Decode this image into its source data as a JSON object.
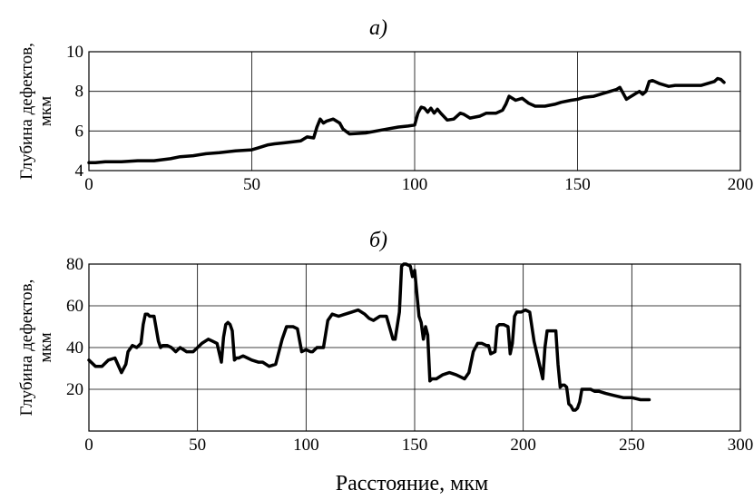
{
  "chart_data": [
    {
      "type": "line",
      "title": "а)",
      "xlabel": "",
      "ylabel": [
        "Глубина дефектов,",
        "мкм"
      ],
      "xlim": [
        0,
        200
      ],
      "ylim": [
        4,
        10
      ],
      "xticks": [
        0,
        50,
        100,
        150,
        200
      ],
      "yticks": [
        4,
        6,
        8,
        10
      ],
      "xtick_labels": [
        "0",
        "50",
        "100",
        "150",
        "200"
      ],
      "ytick_labels": [
        "4",
        "6",
        "8",
        "10"
      ],
      "grid": true,
      "series": [
        {
          "x": [
            0,
            2,
            5,
            10,
            15,
            20,
            25,
            28,
            32,
            36,
            40,
            45,
            50,
            52,
            55,
            57,
            60,
            65,
            67,
            69,
            70,
            71,
            72,
            73,
            75,
            77,
            78,
            80,
            85,
            90,
            95,
            98,
            100,
            101,
            102,
            103,
            104,
            105,
            106,
            107,
            108,
            110,
            112,
            114,
            115,
            117,
            120,
            122,
            125,
            127,
            128,
            129,
            131,
            133,
            135,
            137,
            140,
            143,
            145,
            148,
            150,
            152,
            155,
            158,
            160,
            162,
            163,
            164,
            165,
            166,
            167,
            168,
            169,
            170,
            171,
            172,
            173,
            175,
            178,
            180,
            185,
            188,
            190,
            192,
            193,
            194,
            195
          ],
          "y": [
            4.4,
            4.4,
            4.45,
            4.45,
            4.5,
            4.5,
            4.6,
            4.7,
            4.75,
            4.85,
            4.9,
            5.0,
            5.05,
            5.15,
            5.3,
            5.35,
            5.4,
            5.5,
            5.7,
            5.65,
            6.2,
            6.6,
            6.4,
            6.5,
            6.6,
            6.4,
            6.1,
            5.85,
            5.9,
            6.05,
            6.2,
            6.25,
            6.3,
            6.9,
            7.2,
            7.15,
            6.95,
            7.15,
            6.9,
            7.1,
            6.9,
            6.55,
            6.6,
            6.9,
            6.85,
            6.65,
            6.75,
            6.9,
            6.9,
            7.05,
            7.35,
            7.75,
            7.55,
            7.65,
            7.4,
            7.25,
            7.25,
            7.35,
            7.45,
            7.55,
            7.6,
            7.7,
            7.75,
            7.9,
            8.0,
            8.1,
            8.2,
            7.9,
            7.6,
            7.7,
            7.8,
            7.9,
            8.0,
            7.85,
            8.0,
            8.5,
            8.55,
            8.4,
            8.25,
            8.3,
            8.3,
            8.3,
            8.4,
            8.5,
            8.65,
            8.6,
            8.45
          ]
        }
      ]
    },
    {
      "type": "line",
      "title": "б)",
      "xlabel": "Расстояние, мкм",
      "ylabel": [
        "Глубина дефектов,",
        "мкм"
      ],
      "xlim": [
        0,
        300
      ],
      "ylim": [
        0,
        80
      ],
      "xticks": [
        0,
        50,
        100,
        150,
        200,
        250,
        300
      ],
      "yticks": [
        0,
        20,
        40,
        60,
        80
      ],
      "xtick_labels": [
        "0",
        "50",
        "100",
        "150",
        "200",
        "250",
        "300"
      ],
      "ytick_labels": [
        "20",
        "40",
        "60",
        "80"
      ],
      "grid": true,
      "series": [
        {
          "x": [
            0,
            3,
            6,
            9,
            12,
            15,
            17,
            18,
            20,
            22,
            24,
            25,
            26,
            27,
            28,
            30,
            32,
            33,
            34,
            35,
            36,
            38,
            40,
            42,
            45,
            48,
            52,
            55,
            57,
            59,
            61,
            62,
            63,
            64,
            65,
            66,
            67,
            68,
            69,
            71,
            73,
            75,
            78,
            80,
            83,
            86,
            89,
            91,
            93,
            94,
            96,
            98,
            100,
            102,
            103,
            105,
            108,
            110,
            112,
            115,
            118,
            121,
            124,
            127,
            129,
            131,
            134,
            137,
            140,
            141,
            143,
            144,
            145,
            146,
            148,
            149,
            150,
            152,
            153,
            154,
            155,
            156,
            157,
            158,
            160,
            163,
            166,
            169,
            171,
            173,
            175,
            177,
            179,
            181,
            183,
            184,
            185,
            187,
            188,
            189,
            191,
            193,
            194,
            195,
            196,
            197,
            199,
            201,
            203,
            205,
            207,
            209,
            210,
            211,
            212,
            213,
            214,
            215,
            216,
            217,
            218,
            219,
            220,
            221,
            222,
            223,
            224,
            225,
            226,
            227,
            229,
            231,
            233,
            235,
            238,
            242,
            246,
            250,
            254,
            258
          ],
          "y": [
            34,
            31,
            31,
            34,
            35,
            28,
            32,
            38,
            41,
            40,
            42,
            51,
            56,
            56,
            55,
            55,
            43,
            40,
            41,
            41,
            41,
            40,
            38,
            40,
            38,
            38,
            42,
            44,
            43,
            42,
            33,
            45,
            51,
            52,
            51,
            48,
            34,
            35,
            35,
            36,
            35,
            34,
            33,
            33,
            31,
            32,
            44,
            50,
            50,
            50,
            49,
            38,
            39,
            38,
            38,
            40,
            40,
            53,
            56,
            55,
            56,
            57,
            58,
            56,
            54,
            53,
            55,
            55,
            44,
            44,
            57,
            79,
            80,
            80,
            79,
            74,
            77,
            55,
            52,
            44,
            50,
            46,
            24,
            25,
            25,
            27,
            28,
            27,
            26,
            25,
            28,
            38,
            42,
            42,
            41,
            41,
            37,
            38,
            50,
            51,
            51,
            50,
            37,
            42,
            55,
            57,
            57,
            58,
            57,
            43,
            34,
            25,
            40,
            48,
            48,
            48,
            48,
            48,
            32,
            21,
            22,
            22,
            21,
            13,
            12,
            10,
            10,
            11,
            14,
            20,
            20,
            20,
            19,
            19,
            18,
            17,
            16,
            16,
            15,
            15
          ]
        }
      ]
    }
  ]
}
